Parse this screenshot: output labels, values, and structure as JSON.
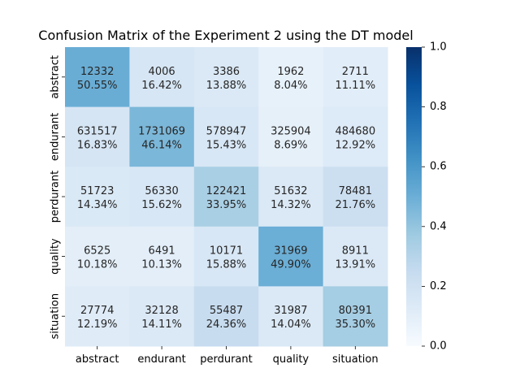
{
  "chart_data": {
    "type": "heatmap",
    "title": "Confusion Matrix of the Experiment 2 using the DT model",
    "xlabel": "",
    "ylabel": "",
    "x_categories": [
      "abstract",
      "endurant",
      "perdurant",
      "quality",
      "situation"
    ],
    "y_categories": [
      "abstract",
      "endurant",
      "perdurant",
      "quality",
      "situation"
    ],
    "counts": [
      [
        12332,
        4006,
        3386,
        1962,
        2711
      ],
      [
        631517,
        1731069,
        578947,
        325904,
        484680
      ],
      [
        51723,
        56330,
        122421,
        51632,
        78481
      ],
      [
        6525,
        6491,
        10171,
        31969,
        8911
      ],
      [
        27774,
        32128,
        55487,
        31987,
        80391
      ]
    ],
    "percentages": [
      [
        "50.55%",
        "16.42%",
        "13.88%",
        "8.04%",
        "11.11%"
      ],
      [
        "16.83%",
        "46.14%",
        "15.43%",
        "8.69%",
        "12.92%"
      ],
      [
        "14.34%",
        "15.62%",
        "33.95%",
        "14.32%",
        "21.76%"
      ],
      [
        "10.18%",
        "10.13%",
        "15.88%",
        "49.90%",
        "13.91%"
      ],
      [
        "12.19%",
        "14.11%",
        "24.36%",
        "14.04%",
        "35.30%"
      ]
    ],
    "colorbar": {
      "cmap": "Blues",
      "vmin": 0.0,
      "vmax": 1.0,
      "ticks": [
        "0.0",
        "0.2",
        "0.4",
        "0.6",
        "0.8",
        "1.0"
      ]
    }
  }
}
